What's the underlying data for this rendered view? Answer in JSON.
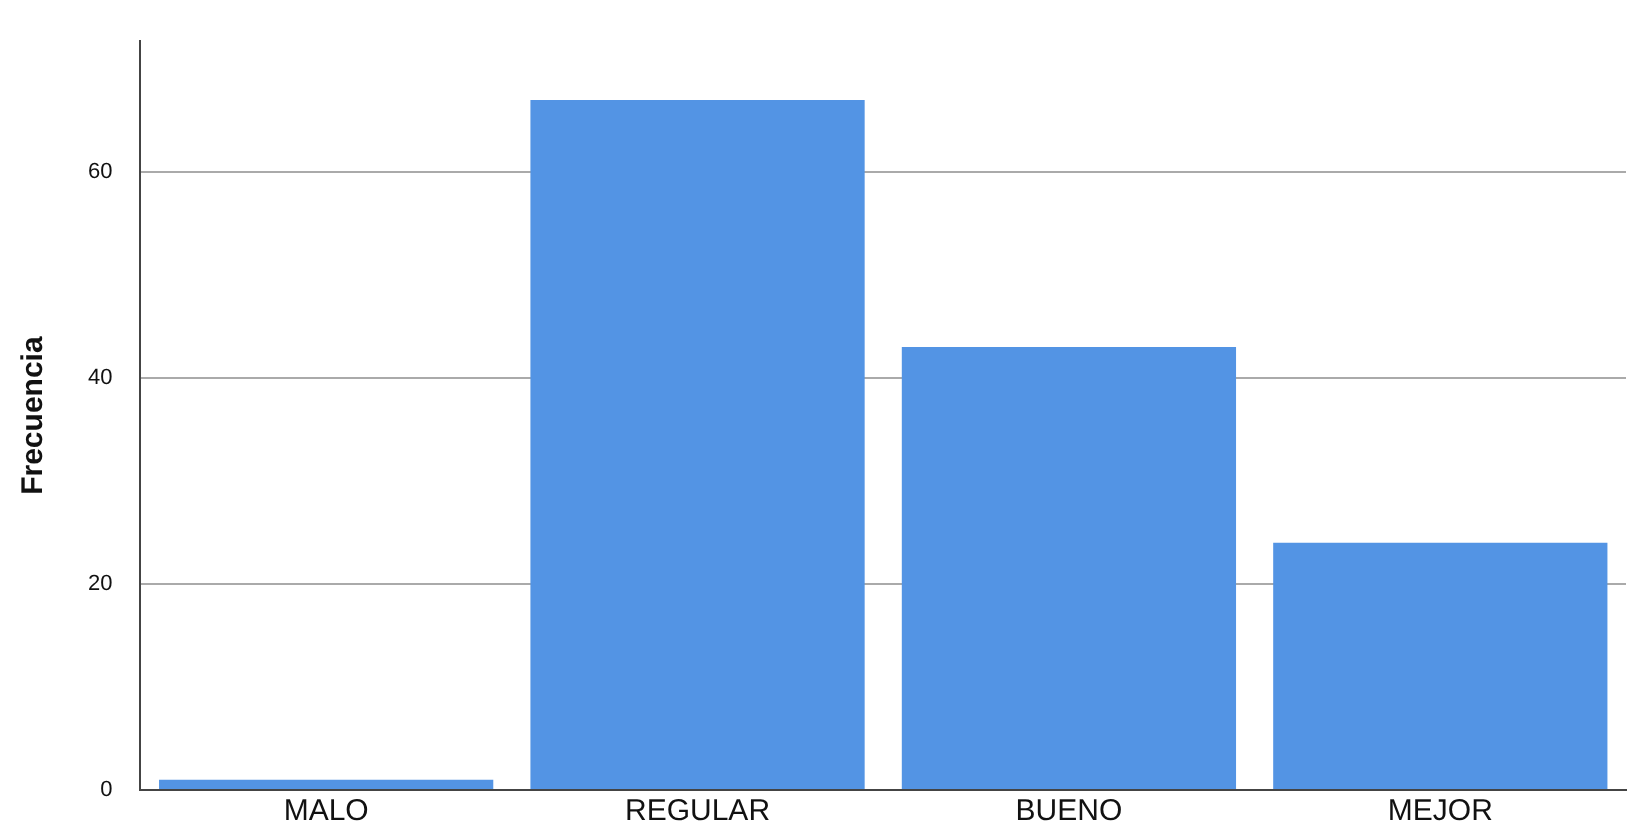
{
  "chart_data": {
    "type": "bar",
    "ylabel": "Frecuencia",
    "categories": [
      "MALO",
      "REGULAR",
      "BUENO",
      "MEJOR"
    ],
    "values": [
      1,
      67,
      43,
      24
    ],
    "color": "#5394e4",
    "ylim": [
      0,
      72.7
    ],
    "yticks": [
      0,
      20,
      40,
      60
    ],
    "grid": "y",
    "legend": false
  }
}
